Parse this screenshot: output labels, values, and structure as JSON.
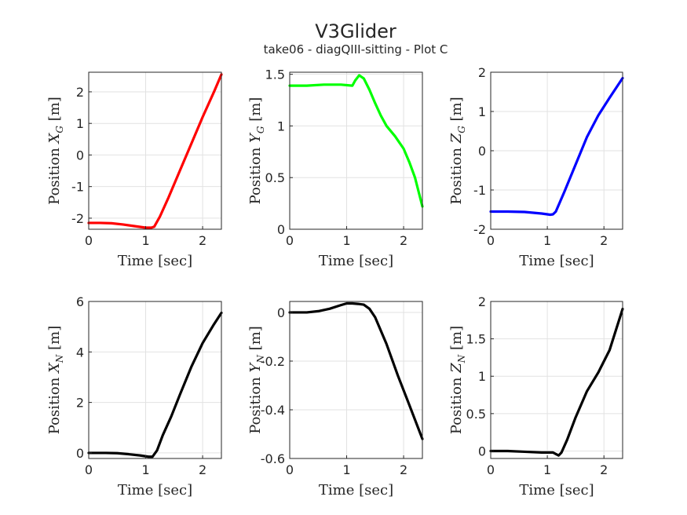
{
  "figure": {
    "title": "V3Glider",
    "subtitle": "take06 - diagQIII-sitting - Plot C"
  },
  "chart_data": [
    {
      "type": "line",
      "xlabel": "Time [sec]",
      "ylabel": "Position X_G [m]",
      "ylabel_parts": [
        "Position ",
        "X",
        "G",
        " [m]"
      ],
      "xlim": [
        0,
        2.33
      ],
      "ylim": [
        -2.35,
        2.62
      ],
      "xticks": [
        "0",
        "1",
        "2"
      ],
      "xtick_values": [
        0,
        1,
        2
      ],
      "yticks": [
        "-2",
        "-1",
        "0",
        "1",
        "2"
      ],
      "ytick_values": [
        -2,
        -1,
        0,
        1,
        2
      ],
      "grid": true,
      "color": "#ff0000",
      "series": [
        {
          "x": [
            0,
            0.2,
            0.4,
            0.6,
            0.8,
            1.0,
            1.1,
            1.15,
            1.25,
            1.4,
            1.6,
            1.8,
            2.0,
            2.2,
            2.33
          ],
          "y": [
            -2.15,
            -2.15,
            -2.16,
            -2.2,
            -2.25,
            -2.3,
            -2.3,
            -2.27,
            -1.95,
            -1.35,
            -0.5,
            0.35,
            1.2,
            2.0,
            2.55
          ]
        }
      ]
    },
    {
      "type": "line",
      "xlabel": "Time [sec]",
      "ylabel": "Position Y_G [m]",
      "ylabel_parts": [
        "Position ",
        "Y",
        "G",
        " [m]"
      ],
      "xlim": [
        0,
        2.33
      ],
      "ylim": [
        0,
        1.52
      ],
      "xticks": [
        "0",
        "1",
        "2"
      ],
      "xtick_values": [
        0,
        1,
        2
      ],
      "yticks": [
        "0",
        "0.5",
        "1",
        "1.5"
      ],
      "ytick_values": [
        0,
        0.5,
        1,
        1.5
      ],
      "grid": true,
      "color": "#00ff00",
      "series": [
        {
          "x": [
            0,
            0.3,
            0.6,
            0.9,
            1.1,
            1.15,
            1.22,
            1.3,
            1.4,
            1.5,
            1.6,
            1.7,
            1.85,
            2.0,
            2.1,
            2.2,
            2.33
          ],
          "y": [
            1.39,
            1.39,
            1.4,
            1.4,
            1.39,
            1.44,
            1.49,
            1.46,
            1.35,
            1.22,
            1.1,
            1.0,
            0.9,
            0.78,
            0.65,
            0.5,
            0.22
          ]
        }
      ]
    },
    {
      "type": "line",
      "xlabel": "Time [sec]",
      "ylabel": "Position Z_G [m]",
      "ylabel_parts": [
        "Position ",
        "Z",
        "G",
        " [m]"
      ],
      "xlim": [
        0,
        2.33
      ],
      "ylim": [
        -2,
        2
      ],
      "xticks": [
        "0",
        "1",
        "2"
      ],
      "xtick_values": [
        0,
        1,
        2
      ],
      "yticks": [
        "-2",
        "-1",
        "0",
        "1",
        "2"
      ],
      "ytick_values": [
        -2,
        -1,
        0,
        1,
        2
      ],
      "grid": true,
      "color": "#0000ff",
      "series": [
        {
          "x": [
            0,
            0.3,
            0.6,
            0.9,
            1.05,
            1.1,
            1.15,
            1.3,
            1.5,
            1.7,
            1.9,
            2.1,
            2.33
          ],
          "y": [
            -1.55,
            -1.55,
            -1.56,
            -1.6,
            -1.63,
            -1.62,
            -1.55,
            -1.05,
            -0.35,
            0.35,
            0.9,
            1.35,
            1.85
          ]
        }
      ]
    },
    {
      "type": "line",
      "xlabel": "Time [sec]",
      "ylabel": "Position X_N [m]",
      "ylabel_parts": [
        "Position ",
        "X",
        "N",
        " [m]"
      ],
      "xlim": [
        0,
        2.33
      ],
      "ylim": [
        -0.22,
        6
      ],
      "xticks": [
        "0",
        "1",
        "2"
      ],
      "xtick_values": [
        0,
        1,
        2
      ],
      "yticks": [
        "0",
        "2",
        "4",
        "6"
      ],
      "ytick_values": [
        0,
        2,
        4,
        6
      ],
      "grid": true,
      "color": "#000000",
      "series": [
        {
          "x": [
            0,
            0.3,
            0.5,
            0.7,
            0.9,
            1.05,
            1.12,
            1.2,
            1.3,
            1.45,
            1.6,
            1.8,
            2.0,
            2.2,
            2.33
          ],
          "y": [
            0.0,
            0.0,
            -0.01,
            -0.05,
            -0.1,
            -0.15,
            -0.15,
            0.1,
            0.7,
            1.45,
            2.3,
            3.4,
            4.35,
            5.1,
            5.55
          ]
        }
      ]
    },
    {
      "type": "line",
      "xlabel": "Time [sec]",
      "ylabel": "Position Y_N [m]",
      "ylabel_parts": [
        "Position ",
        "Y",
        "N",
        " [m]"
      ],
      "xlim": [
        0,
        2.33
      ],
      "ylim": [
        -0.6,
        0.045
      ],
      "xticks": [
        "0",
        "1",
        "2"
      ],
      "xtick_values": [
        0,
        1,
        2
      ],
      "yticks": [
        "-0.6",
        "-0.4",
        "-0.2",
        "0"
      ],
      "ytick_values": [
        -0.6,
        -0.4,
        -0.2,
        0
      ],
      "grid": true,
      "color": "#000000",
      "series": [
        {
          "x": [
            0,
            0.3,
            0.5,
            0.7,
            0.9,
            1.0,
            1.1,
            1.2,
            1.3,
            1.4,
            1.5,
            1.7,
            1.9,
            2.1,
            2.33
          ],
          "y": [
            0.0,
            0.0,
            0.005,
            0.015,
            0.03,
            0.037,
            0.037,
            0.035,
            0.032,
            0.015,
            -0.02,
            -0.13,
            -0.26,
            -0.38,
            -0.52
          ]
        }
      ]
    },
    {
      "type": "line",
      "xlabel": "Time [sec]",
      "ylabel": "Position Z_N [m]",
      "ylabel_parts": [
        "Position ",
        "Z",
        "N",
        " [m]"
      ],
      "xlim": [
        0,
        2.33
      ],
      "ylim": [
        -0.1,
        2
      ],
      "xticks": [
        "0",
        "1",
        "2"
      ],
      "xtick_values": [
        0,
        1,
        2
      ],
      "yticks": [
        "0",
        "0.5",
        "1",
        "1.5",
        "2"
      ],
      "ytick_values": [
        0,
        0.5,
        1,
        1.5,
        2
      ],
      "grid": true,
      "color": "#000000",
      "series": [
        {
          "x": [
            0,
            0.3,
            0.6,
            0.9,
            1.0,
            1.1,
            1.15,
            1.2,
            1.25,
            1.35,
            1.5,
            1.7,
            1.9,
            2.1,
            2.33
          ],
          "y": [
            0.0,
            0.0,
            -0.01,
            -0.02,
            -0.02,
            -0.02,
            -0.04,
            -0.06,
            -0.02,
            0.15,
            0.45,
            0.8,
            1.05,
            1.35,
            1.9
          ]
        }
      ]
    }
  ]
}
